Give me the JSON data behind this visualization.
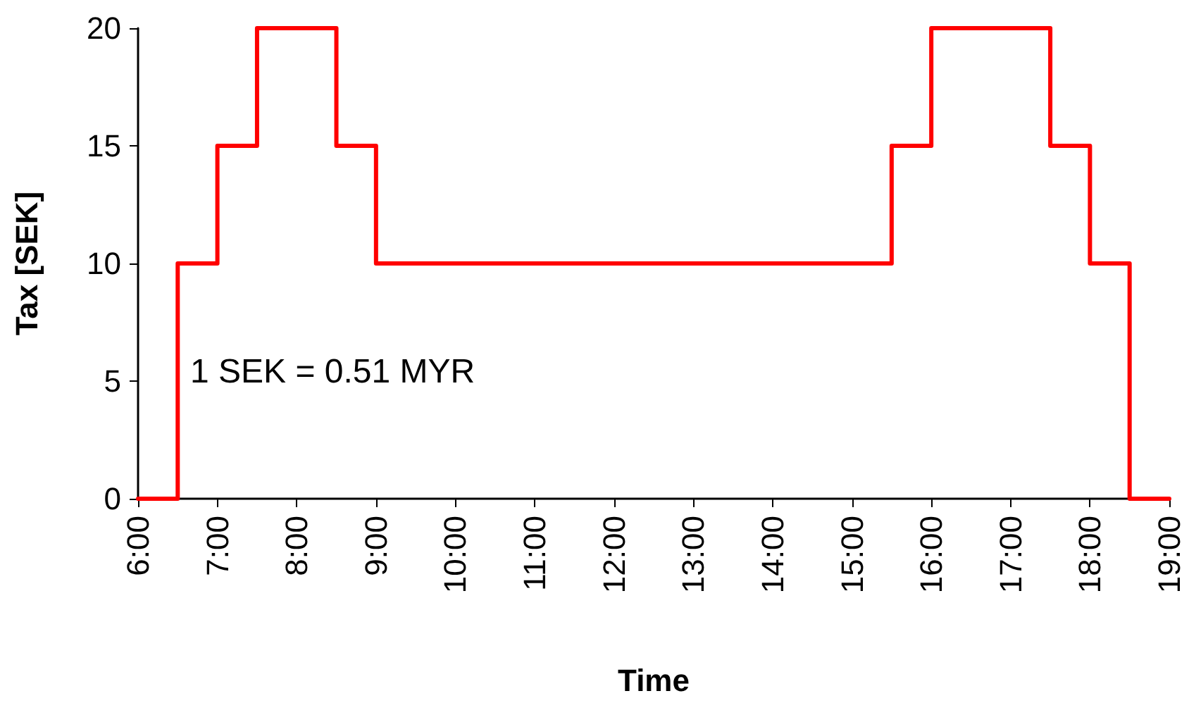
{
  "chart_data": {
    "type": "step",
    "xlabel": "Time",
    "ylabel": "Tax [SEK]",
    "x": [
      6,
      6.5,
      7,
      7.5,
      8.5,
      9,
      15.5,
      16,
      17.5,
      18,
      18.5,
      19
    ],
    "series": [
      {
        "color": "#ff0000",
        "values": [
          0,
          10,
          15,
          20,
          15,
          10,
          15,
          20,
          15,
          10,
          0,
          0
        ]
      }
    ],
    "xlim": [
      6,
      19
    ],
    "xticks": [
      {
        "value": 6,
        "label": "6:00"
      },
      {
        "value": 7,
        "label": "7:00"
      },
      {
        "value": 8,
        "label": "8:00"
      },
      {
        "value": 9,
        "label": "9:00"
      },
      {
        "value": 10,
        "label": "10:00"
      },
      {
        "value": 11,
        "label": "11:00"
      },
      {
        "value": 12,
        "label": "12:00"
      },
      {
        "value": 13,
        "label": "13:00"
      },
      {
        "value": 14,
        "label": "14:00"
      },
      {
        "value": 15,
        "label": "15:00"
      },
      {
        "value": 16,
        "label": "16:00"
      },
      {
        "value": 17,
        "label": "17:00"
      },
      {
        "value": 18,
        "label": "18:00"
      },
      {
        "value": 19,
        "label": "19:00"
      }
    ],
    "ylim": [
      0,
      20
    ],
    "yticks": [
      0,
      5,
      10,
      15,
      20
    ],
    "grid": false,
    "marker": "none",
    "line_style": "solid",
    "annotations": [
      "1 SEK = 0.51 MYR"
    ]
  }
}
